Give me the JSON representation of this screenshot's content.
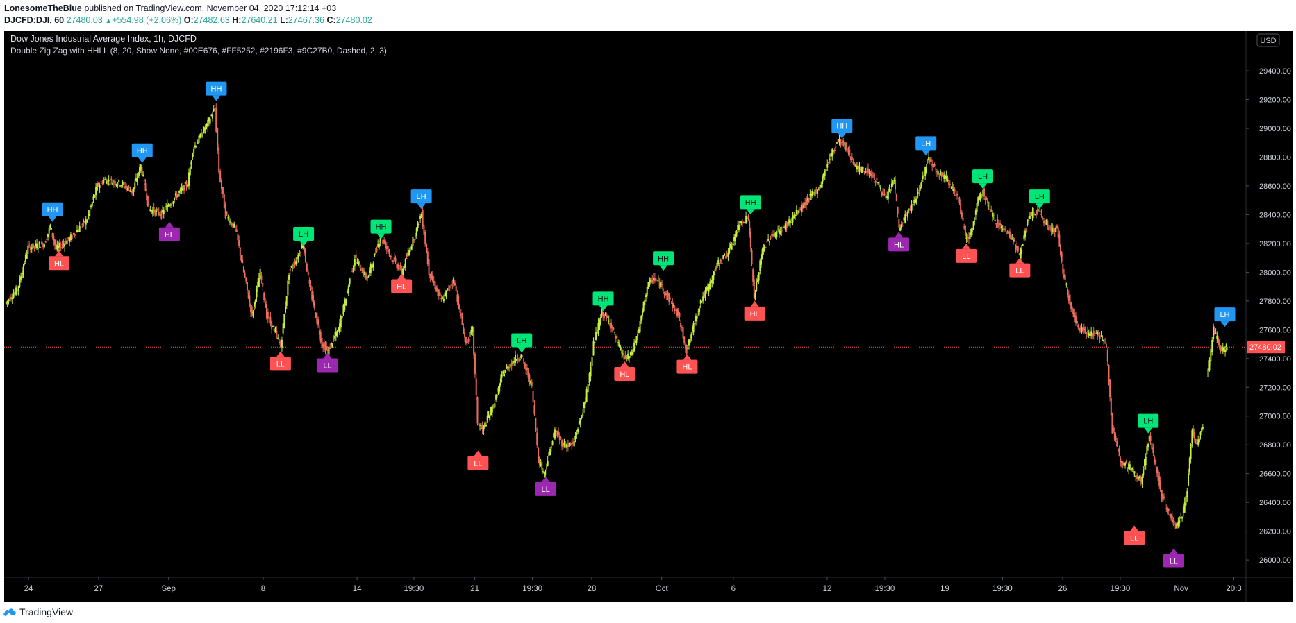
{
  "header": {
    "author": "LonesomeTheBlue",
    "published_text": "published on TradingView.com, November 04, 2020 17:12:14 +03",
    "symbol": "DJCFD:DJI, 60",
    "last": "27480.03",
    "change": "+554.98 (+2.06%)",
    "o_label": "O:",
    "o": "27482.63",
    "h_label": "H:",
    "h": "27640.21",
    "l_label": "L:",
    "l": "27467.36",
    "c_label": "C:",
    "c": "27480.02"
  },
  "chart_title": "Dow Jones Industrial Average Index, 1h, DJCFD",
  "indicator_title": "Double Zig Zag with HHLL (8, 20, Show None, #00E676, #FF5252, #2196F3, #9C27B0, Dashed, 2, 3)",
  "currency_label": "USD",
  "footer": {
    "brand": "TradingView"
  },
  "colors": {
    "background": "#000000",
    "up_candle": "#c6ee3a",
    "down_candle": "#ef6c5a",
    "HH": "#2196F3",
    "LH": "#00E676",
    "LL": "#FF5252",
    "HL": "#9C27B0",
    "HL_red": "#FF5252",
    "last_price_line": "#FF5252"
  },
  "chart_data": {
    "type": "candlestick",
    "ylim": [
      25880,
      29680
    ],
    "x_range": [
      0,
      1500
    ],
    "y_ticks": [
      "26000.00",
      "26200.00",
      "26400.00",
      "26600.00",
      "26800.00",
      "27000.00",
      "27200.00",
      "27400.00",
      "27600.00",
      "27800.00",
      "28000.00",
      "28200.00",
      "28400.00",
      "28600.00",
      "28800.00",
      "29000.00",
      "29200.00",
      "29400.00"
    ],
    "x_ticks": [
      {
        "label": "24",
        "x": 28
      },
      {
        "label": "27",
        "x": 113
      },
      {
        "label": "Sep",
        "x": 198
      },
      {
        "label": "8",
        "x": 313
      },
      {
        "label": "14",
        "x": 427
      },
      {
        "label": "19:30",
        "x": 496
      },
      {
        "label": "21",
        "x": 570
      },
      {
        "label": "19:30",
        "x": 640
      },
      {
        "label": "28",
        "x": 712
      },
      {
        "label": "Oct",
        "x": 797
      },
      {
        "label": "6",
        "x": 884
      },
      {
        "label": "12",
        "x": 998
      },
      {
        "label": "19:30",
        "x": 1068
      },
      {
        "label": "19",
        "x": 1141
      },
      {
        "label": "19:30",
        "x": 1211
      },
      {
        "label": "26",
        "x": 1284
      },
      {
        "label": "19:30",
        "x": 1354
      },
      {
        "label": "Nov",
        "x": 1428
      },
      {
        "label": "20:3",
        "x": 1492
      }
    ],
    "last_price": "27480.02",
    "path": [
      [
        0,
        27780
      ],
      [
        15,
        27880
      ],
      [
        28,
        28170
      ],
      [
        48,
        28200
      ],
      [
        55,
        28320
      ],
      [
        62,
        28160
      ],
      [
        80,
        28240
      ],
      [
        100,
        28370
      ],
      [
        112,
        28600
      ],
      [
        120,
        28640
      ],
      [
        140,
        28620
      ],
      [
        155,
        28560
      ],
      [
        165,
        28740
      ],
      [
        175,
        28440
      ],
      [
        190,
        28400
      ],
      [
        200,
        28480
      ],
      [
        222,
        28620
      ],
      [
        228,
        28850
      ],
      [
        245,
        29020
      ],
      [
        255,
        29140
      ],
      [
        260,
        28700
      ],
      [
        268,
        28400
      ],
      [
        280,
        28300
      ],
      [
        290,
        28000
      ],
      [
        300,
        27700
      ],
      [
        310,
        28000
      ],
      [
        318,
        27700
      ],
      [
        330,
        27560
      ],
      [
        335,
        27480
      ],
      [
        345,
        28000
      ],
      [
        355,
        28100
      ],
      [
        362,
        28200
      ],
      [
        370,
        27900
      ],
      [
        385,
        27500
      ],
      [
        392,
        27450
      ],
      [
        405,
        27600
      ],
      [
        425,
        28100
      ],
      [
        440,
        27950
      ],
      [
        456,
        28250
      ],
      [
        470,
        28100
      ],
      [
        482,
        28000
      ],
      [
        500,
        28300
      ],
      [
        506,
        28410
      ],
      [
        515,
        28000
      ],
      [
        530,
        27800
      ],
      [
        545,
        27950
      ],
      [
        560,
        27500
      ],
      [
        568,
        27600
      ],
      [
        574,
        26960
      ],
      [
        580,
        26900
      ],
      [
        595,
        27100
      ],
      [
        605,
        27300
      ],
      [
        620,
        27400
      ],
      [
        627,
        27420
      ],
      [
        640,
        27200
      ],
      [
        648,
        26700
      ],
      [
        655,
        26600
      ],
      [
        668,
        26900
      ],
      [
        678,
        26800
      ],
      [
        690,
        26800
      ],
      [
        705,
        27100
      ],
      [
        710,
        27300
      ],
      [
        715,
        27500
      ],
      [
        725,
        27720
      ],
      [
        735,
        27650
      ],
      [
        745,
        27500
      ],
      [
        752,
        27400
      ],
      [
        760,
        27420
      ],
      [
        770,
        27600
      ],
      [
        780,
        27900
      ],
      [
        788,
        27960
      ],
      [
        798,
        27900
      ],
      [
        808,
        27800
      ],
      [
        818,
        27700
      ],
      [
        828,
        27450
      ],
      [
        835,
        27600
      ],
      [
        845,
        27800
      ],
      [
        855,
        27900
      ],
      [
        865,
        28050
      ],
      [
        880,
        28150
      ],
      [
        893,
        28350
      ],
      [
        903,
        28380
      ],
      [
        910,
        27820
      ],
      [
        920,
        28150
      ],
      [
        930,
        28250
      ],
      [
        945,
        28300
      ],
      [
        960,
        28400
      ],
      [
        975,
        28500
      ],
      [
        990,
        28600
      ],
      [
        1002,
        28800
      ],
      [
        1012,
        28920
      ],
      [
        1020,
        28880
      ],
      [
        1035,
        28720
      ],
      [
        1050,
        28700
      ],
      [
        1062,
        28600
      ],
      [
        1070,
        28500
      ],
      [
        1080,
        28650
      ],
      [
        1086,
        28300
      ],
      [
        1095,
        28400
      ],
      [
        1106,
        28500
      ],
      [
        1115,
        28660
      ],
      [
        1122,
        28800
      ],
      [
        1132,
        28700
      ],
      [
        1145,
        28650
      ],
      [
        1158,
        28500
      ],
      [
        1168,
        28220
      ],
      [
        1175,
        28300
      ],
      [
        1182,
        28500
      ],
      [
        1188,
        28560
      ],
      [
        1198,
        28400
      ],
      [
        1212,
        28300
      ],
      [
        1222,
        28250
      ],
      [
        1232,
        28120
      ],
      [
        1245,
        28400
      ],
      [
        1256,
        28420
      ],
      [
        1268,
        28300
      ],
      [
        1278,
        28300
      ],
      [
        1285,
        28000
      ],
      [
        1295,
        27750
      ],
      [
        1305,
        27600
      ],
      [
        1318,
        27580
      ],
      [
        1330,
        27560
      ],
      [
        1338,
        27480
      ],
      [
        1345,
        26900
      ],
      [
        1355,
        26700
      ],
      [
        1365,
        26650
      ],
      [
        1372,
        26600
      ],
      [
        1380,
        26550
      ],
      [
        1390,
        26860
      ],
      [
        1398,
        26650
      ],
      [
        1405,
        26450
      ],
      [
        1415,
        26300
      ],
      [
        1422,
        26240
      ],
      [
        1430,
        26300
      ],
      [
        1436,
        26500
      ],
      [
        1442,
        26900
      ],
      [
        1448,
        26800
      ],
      [
        1455,
        26950
      ]
    ],
    "path2": [
      [
        1460,
        27260
      ],
      [
        1468,
        27600
      ],
      [
        1478,
        27450
      ],
      [
        1485,
        27480
      ]
    ],
    "labels": [
      {
        "text": "HH",
        "type": "HH",
        "x": 57,
        "y": 28350,
        "pos": "above"
      },
      {
        "text": "HL",
        "type": "HL_red",
        "x": 65,
        "y": 28150,
        "pos": "below"
      },
      {
        "text": "HH",
        "type": "HH",
        "x": 166,
        "y": 28760,
        "pos": "above"
      },
      {
        "text": "HL",
        "type": "HL",
        "x": 199,
        "y": 28350,
        "pos": "below"
      },
      {
        "text": "HH",
        "type": "HH",
        "x": 256,
        "y": 29190,
        "pos": "above"
      },
      {
        "text": "LH",
        "type": "LH",
        "x": 362,
        "y": 28180,
        "pos": "above"
      },
      {
        "text": "LL",
        "type": "LL",
        "x": 334,
        "y": 27450,
        "pos": "below"
      },
      {
        "text": "LL",
        "type": "HL",
        "x": 391,
        "y": 27440,
        "pos": "below"
      },
      {
        "text": "HH",
        "type": "LH",
        "x": 456,
        "y": 28230,
        "pos": "above"
      },
      {
        "text": "HL",
        "type": "HL_red",
        "x": 481,
        "y": 27990,
        "pos": "below"
      },
      {
        "text": "LH",
        "type": "HH",
        "x": 505,
        "y": 28440,
        "pos": "above"
      },
      {
        "text": "LL",
        "type": "LL",
        "x": 574,
        "y": 26760,
        "pos": "below"
      },
      {
        "text": "LH",
        "type": "LH",
        "x": 627,
        "y": 27440,
        "pos": "above"
      },
      {
        "text": "LL",
        "type": "HL",
        "x": 656,
        "y": 26580,
        "pos": "below"
      },
      {
        "text": "HH",
        "type": "LH",
        "x": 726,
        "y": 27730,
        "pos": "above"
      },
      {
        "text": "HL",
        "type": "HL_red",
        "x": 752,
        "y": 27380,
        "pos": "below"
      },
      {
        "text": "HH",
        "type": "LH",
        "x": 799,
        "y": 28010,
        "pos": "above"
      },
      {
        "text": "HL",
        "type": "HL_red",
        "x": 828,
        "y": 27430,
        "pos": "below"
      },
      {
        "text": "HH",
        "type": "LH",
        "x": 905,
        "y": 28400,
        "pos": "above"
      },
      {
        "text": "HL",
        "type": "HL_red",
        "x": 910,
        "y": 27800,
        "pos": "below"
      },
      {
        "text": "HH",
        "type": "HH",
        "x": 1016,
        "y": 28930,
        "pos": "above"
      },
      {
        "text": "HL",
        "type": "HL",
        "x": 1085,
        "y": 28280,
        "pos": "below"
      },
      {
        "text": "LH",
        "type": "HH",
        "x": 1118,
        "y": 28810,
        "pos": "above"
      },
      {
        "text": "LL",
        "type": "LL",
        "x": 1167,
        "y": 28200,
        "pos": "below"
      },
      {
        "text": "LH",
        "type": "LH",
        "x": 1187,
        "y": 28580,
        "pos": "above"
      },
      {
        "text": "LL",
        "type": "LL",
        "x": 1232,
        "y": 28100,
        "pos": "below"
      },
      {
        "text": "LH",
        "type": "LH",
        "x": 1256,
        "y": 28440,
        "pos": "above"
      },
      {
        "text": "LL",
        "type": "LL",
        "x": 1371,
        "y": 26240,
        "pos": "below"
      },
      {
        "text": "LH",
        "type": "LH",
        "x": 1388,
        "y": 26880,
        "pos": "above"
      },
      {
        "text": "LL",
        "type": "HL",
        "x": 1419,
        "y": 26080,
        "pos": "below"
      },
      {
        "text": "LH",
        "type": "HH",
        "x": 1481,
        "y": 27620,
        "pos": "above"
      }
    ]
  }
}
